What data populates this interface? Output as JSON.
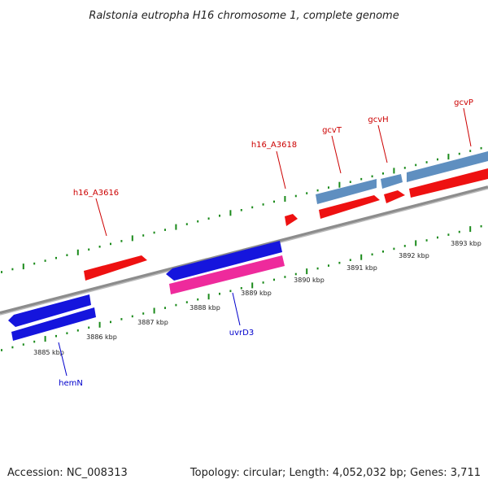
{
  "title": "Ralstonia eutropha H16 chromosome 1, complete genome",
  "footer": {
    "accession": "Accession: NC_008313",
    "summary": "Topology: circular; Length: 4,052,032 bp; Genes: 3,711"
  },
  "colors": {
    "backbone": "#8c8c8c",
    "tick": "#1a8a1a",
    "forward_label": "#cc0000",
    "reverse_label": "#0000cc",
    "red_feature": "#ee1111",
    "steelblue_feature": "#5f8fc0",
    "blue_feature": "#1515dd",
    "pink_feature": "#ee2a9c"
  },
  "ruler": {
    "unit": "kbp",
    "labels": [
      "3885 kbp",
      "3886 kbp",
      "3887 kbp",
      "3888 kbp",
      "3889 kbp",
      "3890 kbp",
      "3891 kbp",
      "3892 kbp",
      "3893 kbp"
    ]
  },
  "gene_labels": {
    "forward": [
      "h16_A3616",
      "h16_A3618",
      "gcvT",
      "gcvH",
      "gcvP"
    ],
    "reverse": [
      "hemN",
      "uvrD3"
    ]
  }
}
